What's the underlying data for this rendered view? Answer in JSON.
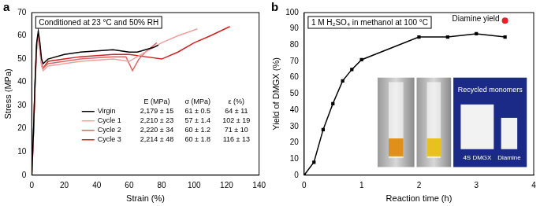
{
  "chart_data": [
    {
      "type": "line",
      "panel_label": "a",
      "annotation": "Conditioned at 23 °C and 50% RH",
      "x_label": "Strain (%)",
      "y_label": "Stress (MPa)",
      "xlim": [
        0,
        140
      ],
      "xticks": [
        0,
        20,
        40,
        60,
        80,
        100,
        120,
        140
      ],
      "ylim": [
        0,
        70
      ],
      "yticks": [
        0,
        10,
        20,
        30,
        40,
        50,
        60,
        70
      ],
      "grid": false,
      "series": [
        {
          "name": "Virgin",
          "color": "#000000",
          "marker": "none",
          "line_style": "solid",
          "x": [
            0,
            1,
            2,
            3,
            4,
            5,
            6,
            7,
            10,
            20,
            30,
            40,
            50,
            60,
            65,
            70,
            75,
            78
          ],
          "values": [
            0,
            18,
            40,
            57,
            62,
            57,
            50,
            48,
            50,
            52,
            53,
            53.5,
            54,
            53,
            53,
            54,
            55,
            56
          ]
        },
        {
          "name": "Cycle 1",
          "color": "#f2a0a0",
          "marker": "none",
          "line_style": "solid",
          "x": [
            0,
            1,
            2,
            3,
            4,
            5,
            6,
            7,
            10,
            20,
            30,
            40,
            50,
            60,
            65,
            70,
            80,
            90,
            102
          ],
          "values": [
            0,
            17,
            38,
            54,
            58,
            53,
            47,
            45,
            47,
            48,
            49,
            49.5,
            50,
            49,
            51,
            53,
            57,
            60,
            63
          ]
        },
        {
          "name": "Cycle 2",
          "color": "#e06666",
          "marker": "none",
          "line_style": "solid",
          "x": [
            0,
            1,
            2,
            3,
            4,
            5,
            6,
            7,
            10,
            20,
            30,
            40,
            50,
            58,
            62,
            66,
            70,
            77
          ],
          "values": [
            0,
            17,
            39,
            56,
            60,
            55,
            48,
            46,
            48,
            49,
            50,
            50.5,
            51,
            51,
            45,
            50,
            53,
            57
          ]
        },
        {
          "name": "Cycle 3",
          "color": "#d42020",
          "marker": "none",
          "line_style": "solid",
          "x": [
            0,
            1,
            2,
            3,
            4,
            5,
            6,
            7,
            10,
            20,
            30,
            40,
            50,
            60,
            70,
            80,
            90,
            100,
            110,
            122
          ],
          "values": [
            0,
            17,
            39,
            56,
            60,
            55,
            48,
            46,
            49,
            50,
            51,
            51.5,
            52,
            52,
            51,
            50,
            53,
            57,
            60,
            64
          ]
        }
      ],
      "table": {
        "columns": [
          "E (MPa)",
          "σ (MPa)",
          "ε (%)"
        ],
        "rows": [
          [
            "2,179 ± 15",
            "61 ± 0.5",
            "64 ± 11"
          ],
          [
            "2,210 ± 23",
            "57 ± 1.4",
            "102 ± 19"
          ],
          [
            "2,220 ± 34",
            "60 ± 1.2",
            "71 ± 10"
          ],
          [
            "2,214 ± 48",
            "60 ± 1.8",
            "116 ± 13"
          ]
        ]
      }
    },
    {
      "type": "line",
      "panel_label": "b",
      "annotation": "1 M H₂SO₄ in methanol at 100 °C",
      "x_label": "Reaction time (h)",
      "y_label": "Yield of DMGX (%)",
      "xlim": [
        0,
        4
      ],
      "xticks": [
        0,
        1,
        2,
        3,
        4
      ],
      "ylim": [
        0,
        100
      ],
      "yticks": [
        0,
        10,
        20,
        30,
        40,
        50,
        60,
        70,
        80,
        90,
        100
      ],
      "grid": false,
      "series": [
        {
          "color": "#000000",
          "marker": "square",
          "line_style": "solid",
          "x": [
            0,
            0.17,
            0.33,
            0.5,
            0.67,
            0.83,
            1,
            2,
            2.5,
            3,
            3.5
          ],
          "values": [
            0,
            8,
            28,
            44,
            58,
            65,
            71,
            85,
            85,
            87,
            85
          ]
        },
        {
          "name": "Diamine yield",
          "type": "scatter",
          "color": "#e8202a",
          "marker": "circle",
          "x": [
            3.5
          ],
          "values": [
            95
          ]
        }
      ],
      "inset_texts": [
        "Recycled monomers",
        "4S DMGX",
        "Diamine"
      ]
    }
  ]
}
